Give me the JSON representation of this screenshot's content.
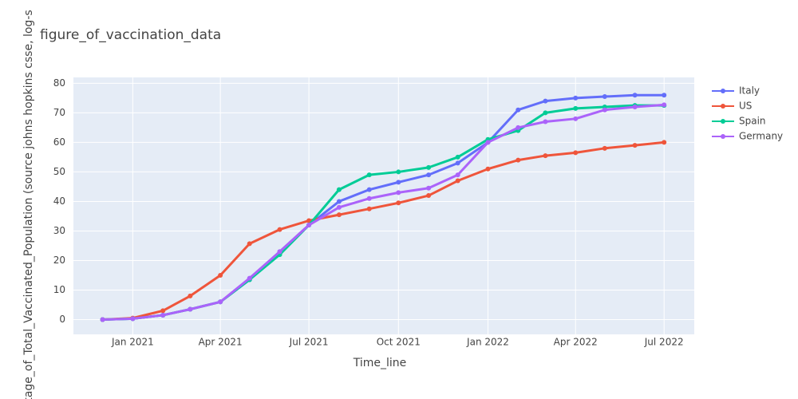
{
  "chart_data": {
    "type": "line",
    "title": "figure_of_vaccination_data",
    "x_label": "Time_line",
    "y_label": "tage_of_Total_Vaccinated_Population (source johns hopkins csse, log-s",
    "x": [
      "2020-12",
      "2021-01",
      "2021-02",
      "2021-03",
      "2021-04",
      "2021-05",
      "2021-06",
      "2021-07",
      "2021-08",
      "2021-09",
      "2021-10",
      "2021-11",
      "2021-12",
      "2022-01",
      "2022-02",
      "2022-03",
      "2022-04",
      "2022-05",
      "2022-06",
      "2022-07"
    ],
    "series": [
      {
        "name": "Italy",
        "color": "#636efa",
        "values": [
          0,
          0.3,
          1.5,
          3.5,
          6,
          13.5,
          23,
          32,
          40,
          44,
          46.5,
          49,
          53,
          60,
          71,
          74,
          75,
          75.5,
          76,
          76
        ]
      },
      {
        "name": "US",
        "color": "#ef553b",
        "values": [
          0,
          0.5,
          3,
          8,
          15,
          25.7,
          30.5,
          33.5,
          35.5,
          37.5,
          39.5,
          42,
          47,
          51,
          54,
          55.5,
          56.5,
          58,
          59,
          60
        ]
      },
      {
        "name": "Spain",
        "color": "#00cc96",
        "values": [
          0,
          0.3,
          1.5,
          3.5,
          6,
          13.5,
          22,
          32,
          44,
          49,
          50,
          51.5,
          55,
          61,
          64,
          70,
          71.5,
          72,
          72.5,
          72.5
        ]
      },
      {
        "name": "Germany",
        "color": "#ab63fa",
        "values": [
          0,
          0.3,
          1.5,
          3.5,
          6,
          14,
          23,
          32,
          38,
          41,
          43,
          44.5,
          49,
          60,
          65,
          67,
          68,
          71,
          72,
          72.7
        ]
      }
    ],
    "xlim": [
      "2020-11",
      "2022-08"
    ],
    "xticks": [
      {
        "value": "2021-01",
        "label": "Jan 2021"
      },
      {
        "value": "2021-04",
        "label": "Apr 2021"
      },
      {
        "value": "2021-07",
        "label": "Jul 2021"
      },
      {
        "value": "2021-10",
        "label": "Oct 2021"
      },
      {
        "value": "2022-01",
        "label": "Jan 2022"
      },
      {
        "value": "2022-04",
        "label": "Apr 2022"
      },
      {
        "value": "2022-07",
        "label": "Jul 2022"
      }
    ],
    "ylim": [
      -5,
      82
    ],
    "yticks": [
      0,
      10,
      20,
      30,
      40,
      50,
      60,
      70,
      80
    ],
    "grid": true,
    "legend": "right"
  }
}
